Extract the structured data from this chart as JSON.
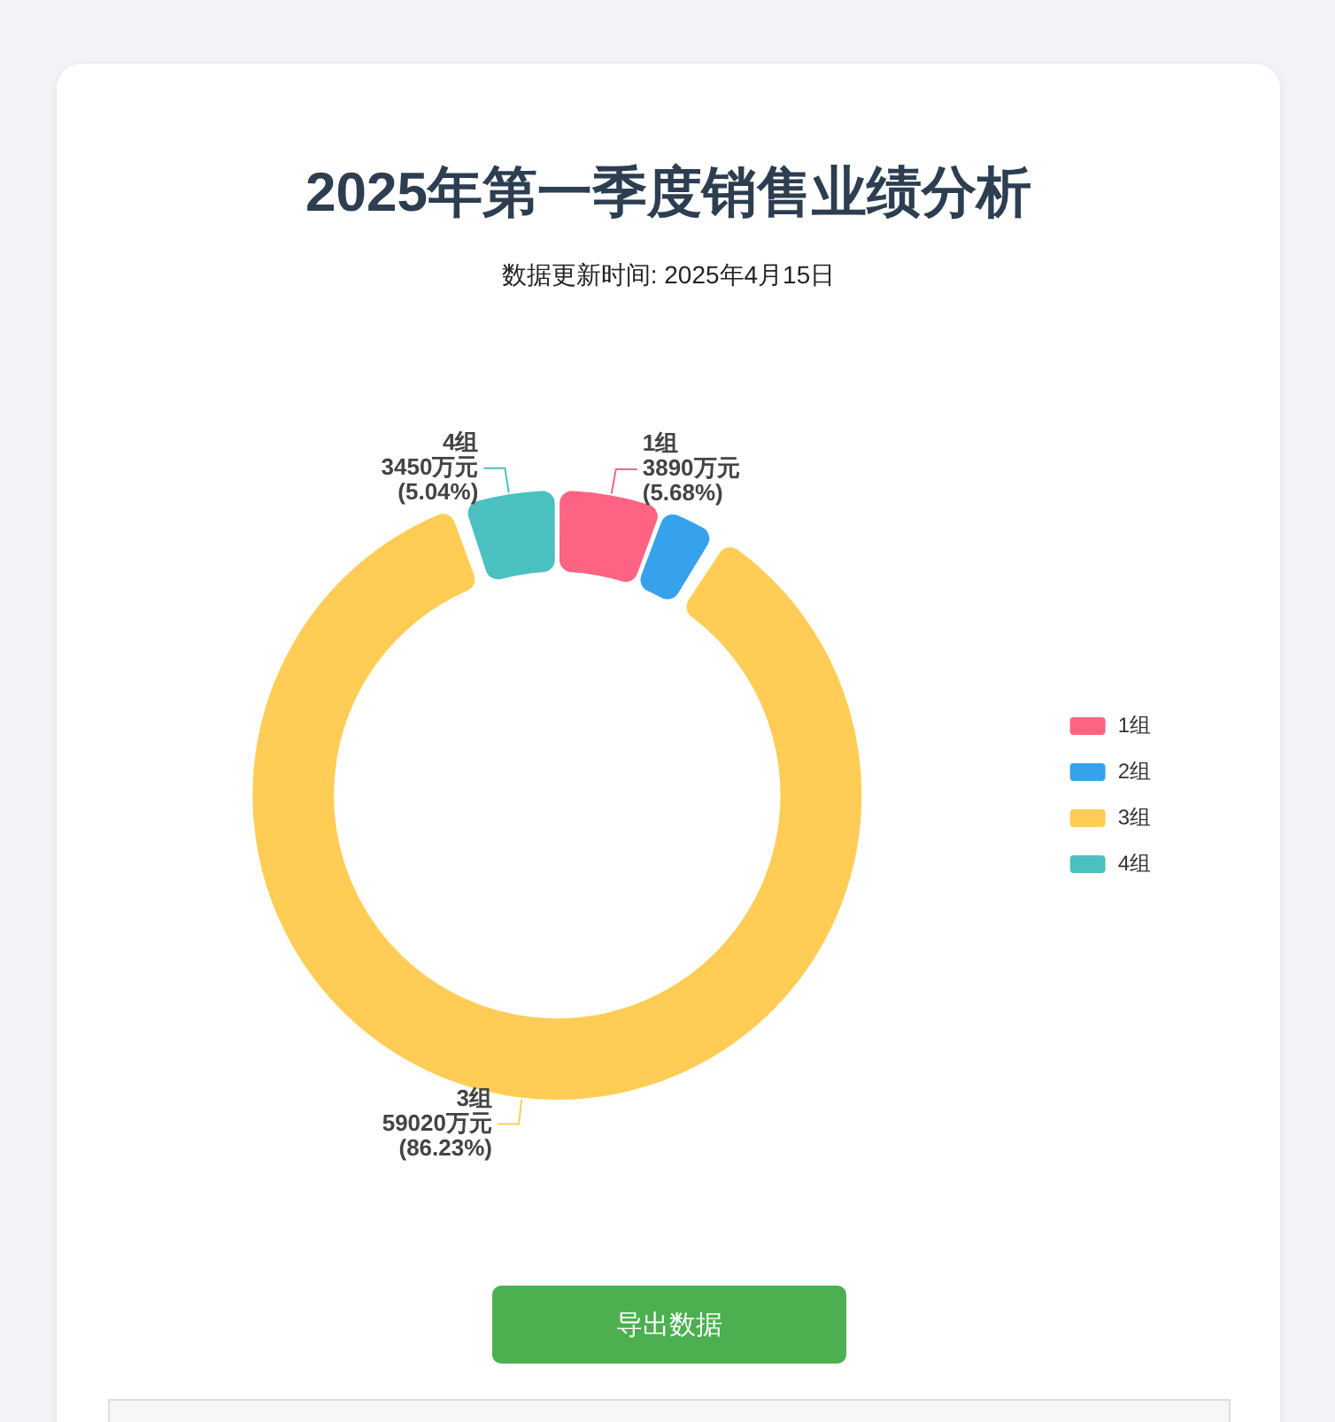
{
  "chart_data": {
    "type": "donut",
    "title": "2025年第一季度销售业绩分析",
    "subtitle": "数据更新时间: 2025年4月15日",
    "categories": [
      "1组",
      "2组",
      "3组",
      "4组"
    ],
    "values": [
      3890,
      2090,
      59020,
      3450
    ],
    "value_labels": [
      "3890万元\n(5.68%)",
      null,
      "59020万元\n(86.23%)",
      "3450万元\n(5.04%)"
    ],
    "colors": [
      "#ff6384",
      "#36a2eb",
      "#ffcd56",
      "#4bc0c0"
    ],
    "legend": "right",
    "annotations": [
      "导出数据"
    ]
  }
}
